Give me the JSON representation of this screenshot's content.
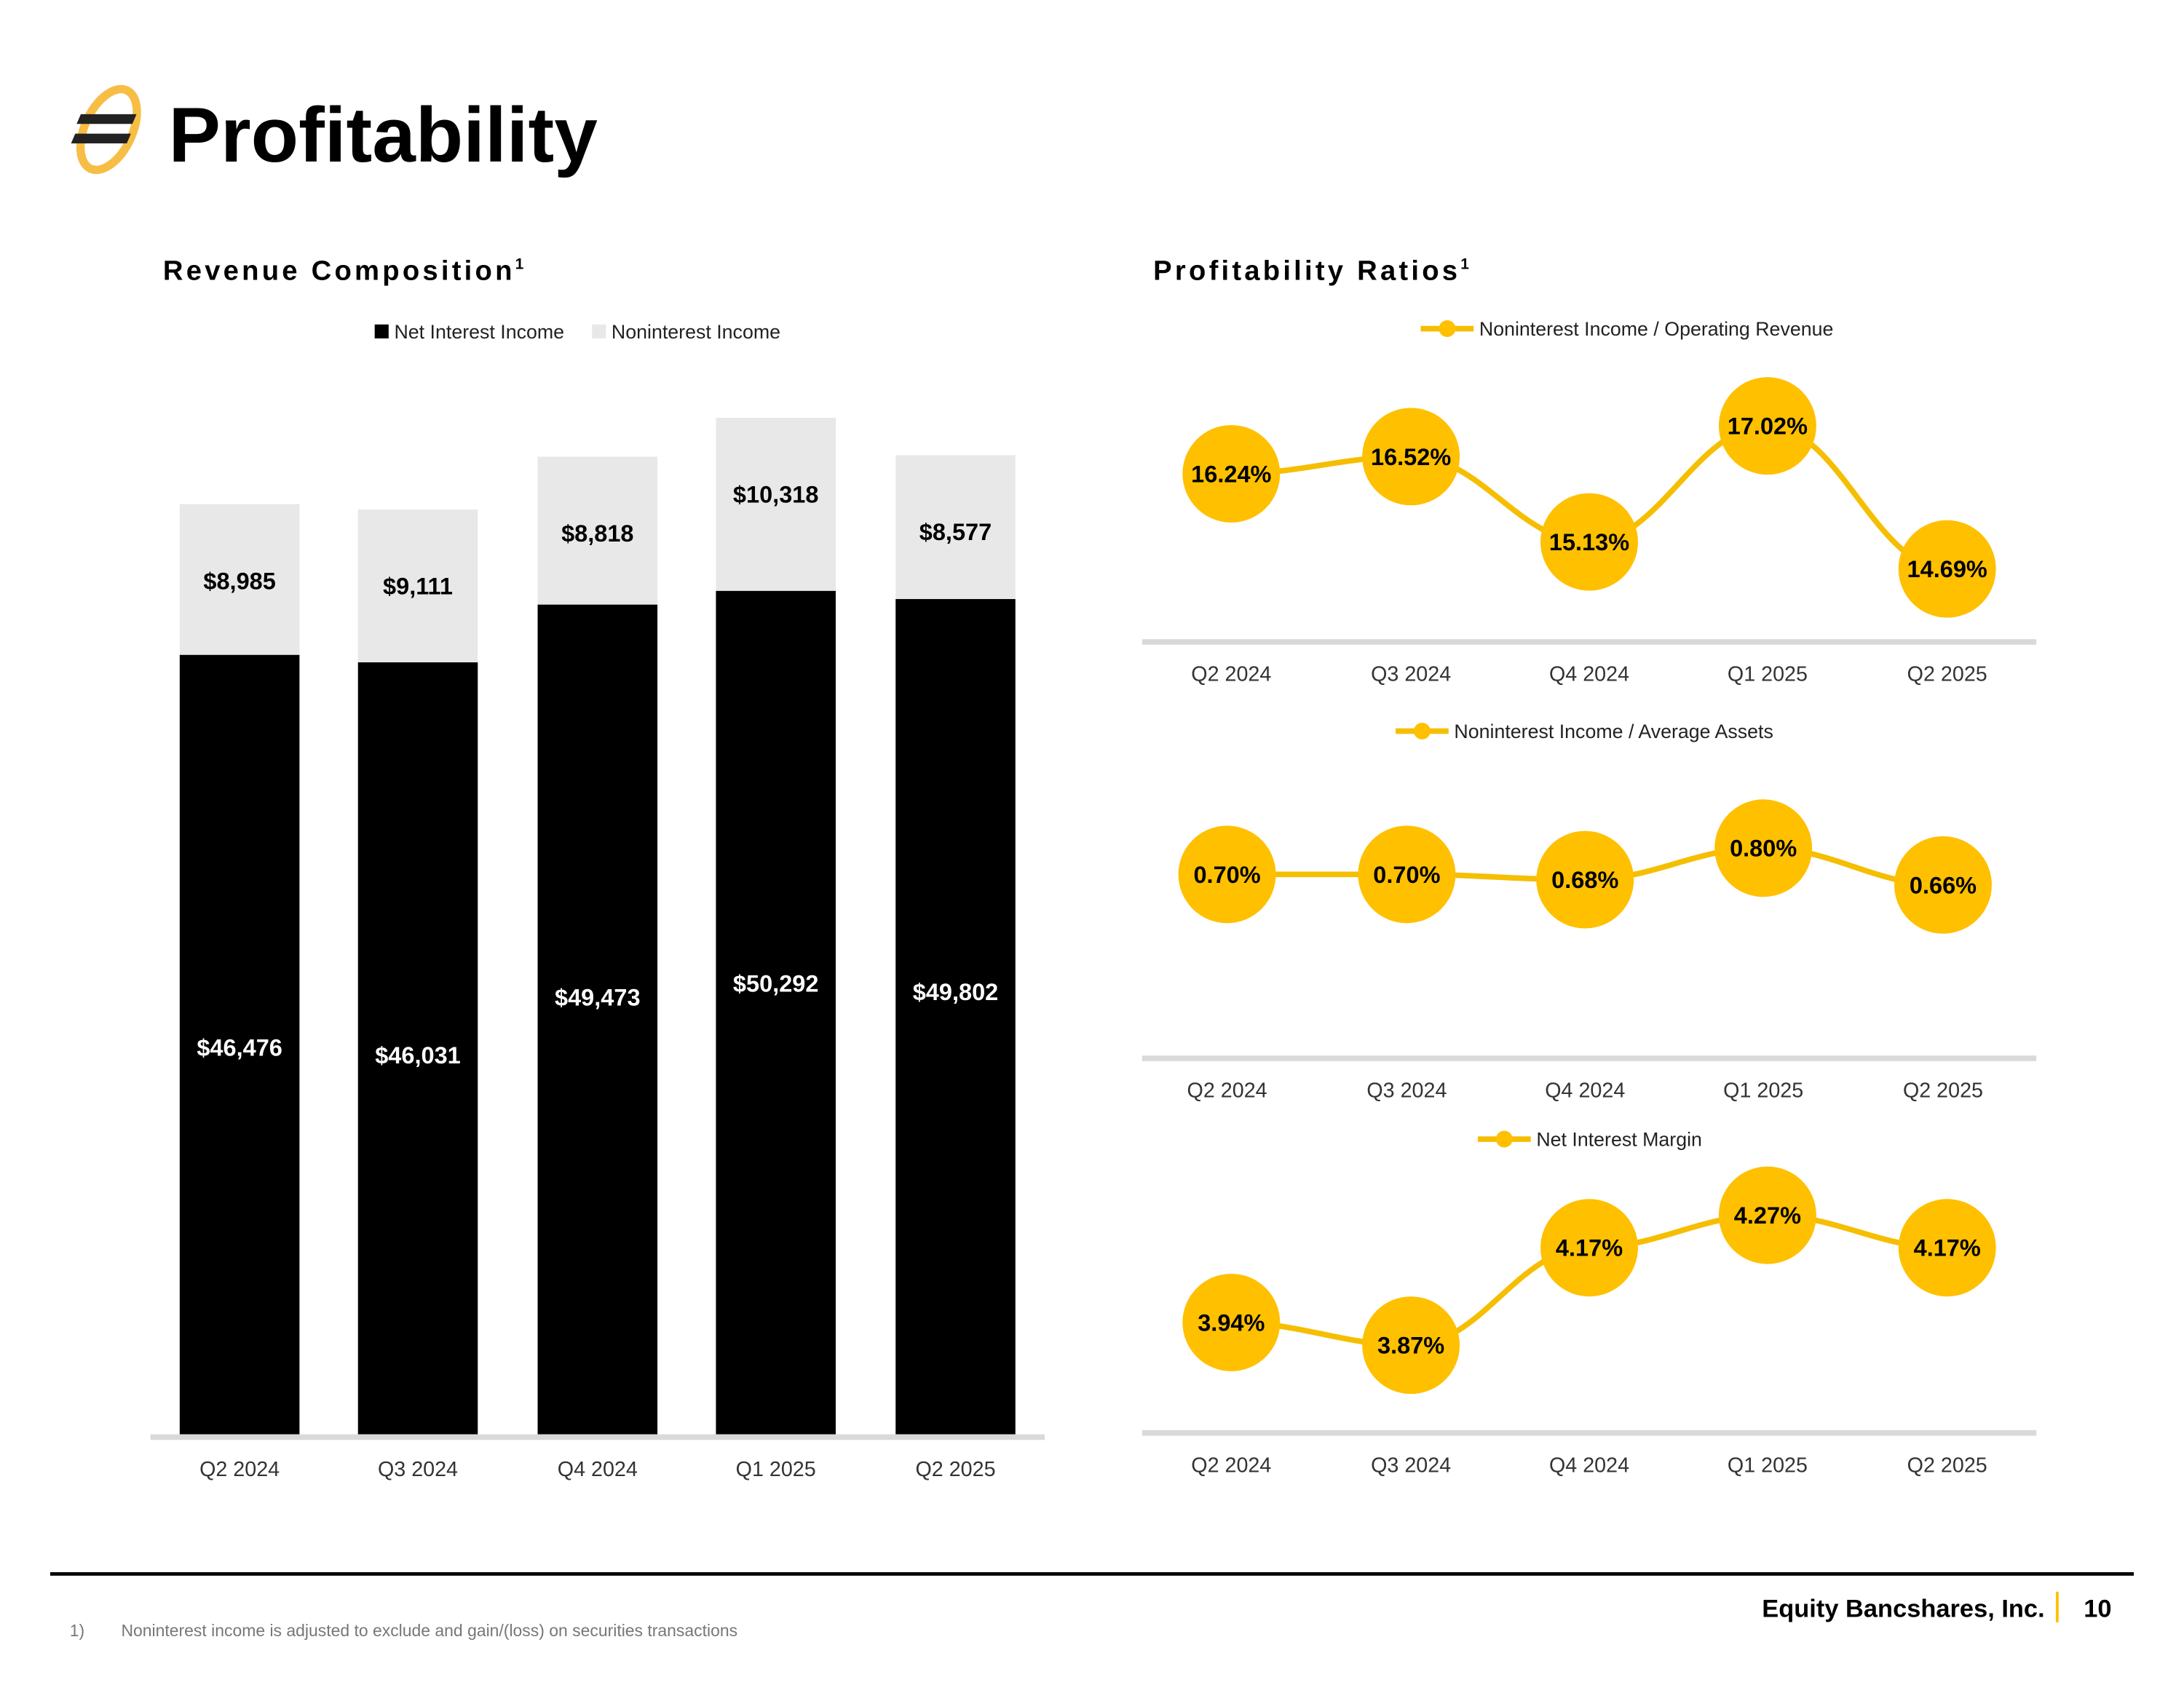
{
  "header": {
    "title": "Profitability",
    "logo_icon": "equity-bank-logo-icon"
  },
  "colors": {
    "gold": "#FFC000",
    "line": "#F5BE00",
    "nii": "#000000",
    "nonii": "#E8E8E8",
    "axis": "#D9D9D9"
  },
  "chart_data": [
    {
      "type": "bar",
      "title": "Revenue Composition",
      "title_sup": "1",
      "stacked": true,
      "categories": [
        "Q2 2024",
        "Q3 2024",
        "Q4 2024",
        "Q1 2025",
        "Q2 2025"
      ],
      "series": [
        {
          "name": "Net Interest Income",
          "values": [
            46476,
            46031,
            49473,
            50292,
            49802
          ],
          "labels": [
            "$46,476",
            "$46,031",
            "$49,473",
            "$50,292",
            "$49,802"
          ]
        },
        {
          "name": "Noninterest Income",
          "values": [
            8985,
            9111,
            8818,
            10318,
            8577
          ],
          "labels": [
            "$8,985",
            "$9,111",
            "$8,818",
            "$10,318",
            "$8,577"
          ]
        }
      ],
      "ylim": [
        0,
        60610
      ],
      "legend": "top-center"
    },
    {
      "type": "line",
      "title": "Profitability Ratios",
      "title_sup": "1",
      "series_name": "Noninterest Income / Operating Revenue",
      "categories": [
        "Q2 2024",
        "Q3 2024",
        "Q4 2024",
        "Q1 2025",
        "Q2 2025"
      ],
      "values": [
        16.24,
        16.52,
        15.13,
        17.02,
        14.69
      ],
      "labels": [
        "16.24%",
        "16.52%",
        "15.13%",
        "17.02%",
        "14.69%"
      ],
      "ylim": [
        13.5,
        18.06
      ],
      "legend": "top-center"
    },
    {
      "type": "line",
      "series_name": "Noninterest Income / Average Assets",
      "categories": [
        "Q2 2024",
        "Q3 2024",
        "Q4 2024",
        "Q1 2025",
        "Q2 2025"
      ],
      "values": [
        0.7,
        0.7,
        0.68,
        0.8,
        0.66
      ],
      "labels": [
        "0.70%",
        "0.70%",
        "0.68%",
        "0.80%",
        "0.66%"
      ],
      "ylim": [
        0,
        1.06
      ],
      "legend": "top-center"
    },
    {
      "type": "line",
      "series_name": "Net Interest Margin",
      "categories": [
        "Q2 2024",
        "Q3 2024",
        "Q4 2024",
        "Q1 2025",
        "Q2 2025"
      ],
      "values": [
        3.94,
        3.87,
        4.17,
        4.27,
        4.17
      ],
      "labels": [
        "3.94%",
        "3.87%",
        "4.17%",
        "4.27%",
        "4.17%"
      ],
      "ylim": [
        3.6,
        4.41
      ],
      "legend": "top-center"
    }
  ],
  "footer": {
    "note_number": "1)",
    "note_text": "Noninterest income is adjusted to exclude and gain/(loss) on securities transactions",
    "company": "Equity Bancshares, Inc.",
    "separator": "|",
    "page_number": "10"
  }
}
